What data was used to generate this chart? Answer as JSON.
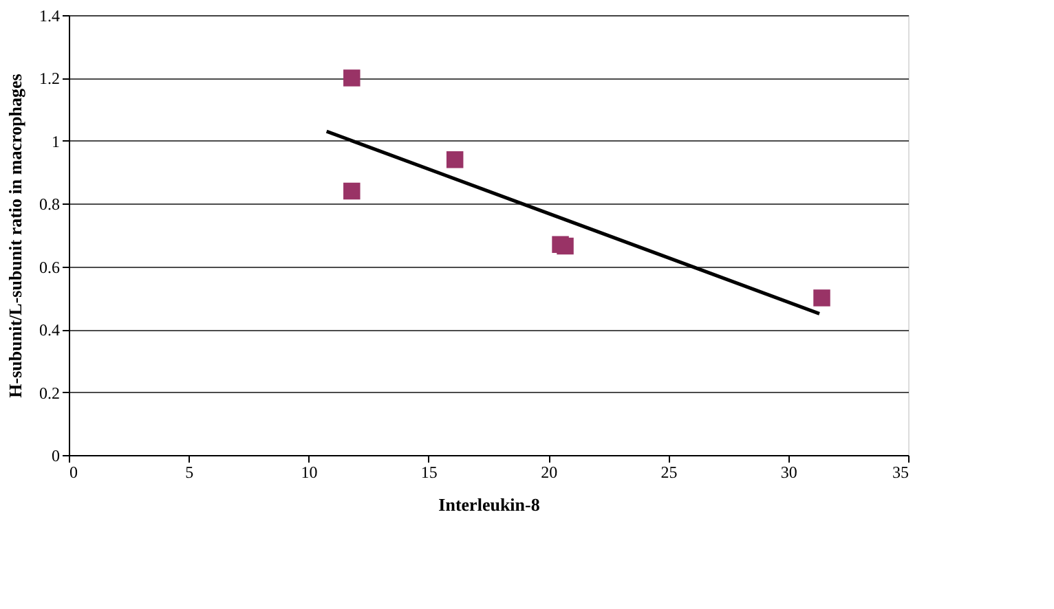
{
  "chart_data": {
    "type": "scatter",
    "xlabel": "Interleukin-8",
    "ylabel": "H-subunit/L-subunit ratio in macrophages",
    "xlim": [
      0,
      35
    ],
    "xticks": [
      0,
      5,
      10,
      15,
      20,
      25,
      30,
      35
    ],
    "ylim": [
      0,
      1.4
    ],
    "yticks": [
      0,
      0.2,
      0.4,
      0.6,
      0.8,
      1,
      1.2,
      1.4
    ],
    "grid": "y",
    "legend": false,
    "series": [
      {
        "type": "scatter",
        "marker": "square",
        "color": "#993366",
        "x": [
          11.8,
          11.8,
          16.1,
          20.5,
          20.7,
          31.4
        ],
        "values": [
          1.2,
          0.84,
          0.94,
          0.67,
          0.665,
          0.5
        ]
      },
      {
        "type": "line",
        "color": "#000000",
        "line_style": "solid",
        "marker": "none",
        "x": [
          10.75,
          31.3
        ],
        "values": [
          1.03,
          0.45
        ]
      }
    ]
  }
}
